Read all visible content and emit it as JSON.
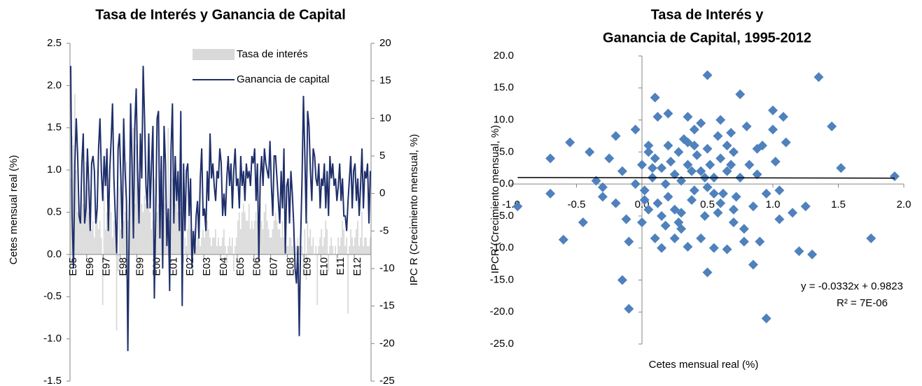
{
  "chart_data": [
    {
      "type": "combo",
      "title": "Tasa de Interés y Ganancia de Capital",
      "ylabel": "Cetes mensual real (%)",
      "y2label": "IPC R (Crecimiento mensual, %)",
      "ylim": [
        -1.5,
        2.5
      ],
      "yticks": [
        2.5,
        {
          "value": 2,
          "label": "2.0"
        },
        1.5,
        {
          "value": 1,
          "label": "1.0"
        },
        0.5,
        {
          "value": 0,
          "label": "0.0"
        },
        -0.5,
        {
          "value": -1,
          "label": "-1.0"
        },
        -1.5
      ],
      "y2lim": [
        -25,
        20
      ],
      "y2ticks": [
        20,
        15,
        10,
        5,
        0,
        -5,
        -10,
        -15,
        -20,
        -25
      ],
      "categories": [
        "E95",
        null,
        null,
        null,
        null,
        null,
        null,
        null,
        null,
        null,
        null,
        null,
        "E96",
        null,
        null,
        null,
        null,
        null,
        null,
        null,
        null,
        null,
        null,
        null,
        "E97",
        null,
        null,
        null,
        null,
        null,
        null,
        null,
        null,
        null,
        null,
        null,
        "E98",
        null,
        null,
        null,
        null,
        null,
        null,
        null,
        null,
        null,
        null,
        null,
        "E99",
        null,
        null,
        null,
        null,
        null,
        null,
        null,
        null,
        null,
        null,
        null,
        "E00",
        null,
        null,
        null,
        null,
        null,
        null,
        null,
        null,
        null,
        null,
        null,
        "E01",
        null,
        null,
        null,
        null,
        null,
        null,
        null,
        null,
        null,
        null,
        null,
        "E02",
        null,
        null,
        null,
        null,
        null,
        null,
        null,
        null,
        null,
        null,
        null,
        "E03",
        null,
        null,
        null,
        null,
        null,
        null,
        null,
        null,
        null,
        null,
        null,
        "E04",
        null,
        null,
        null,
        null,
        null,
        null,
        null,
        null,
        null,
        null,
        null,
        "E05",
        null,
        null,
        null,
        null,
        null,
        null,
        null,
        null,
        null,
        null,
        null,
        "E06",
        null,
        null,
        null,
        null,
        null,
        null,
        null,
        null,
        null,
        null,
        null,
        "E07",
        null,
        null,
        null,
        null,
        null,
        null,
        null,
        null,
        null,
        null,
        null,
        "E08",
        null,
        null,
        null,
        null,
        null,
        null,
        null,
        null,
        null,
        null,
        null,
        "E09",
        null,
        null,
        null,
        null,
        null,
        null,
        null,
        null,
        null,
        null,
        null,
        "E10",
        null,
        null,
        null,
        null,
        null,
        null,
        null,
        null,
        null,
        null,
        null,
        "E11",
        null,
        null,
        null,
        null,
        null,
        null,
        null,
        null,
        null,
        null,
        null,
        "E12",
        null,
        null,
        null,
        null,
        null,
        null,
        null,
        null,
        null,
        null,
        null
      ],
      "series": [
        {
          "name": "Tasa de interés",
          "type": "bar",
          "color": "#d9d9d9",
          "values": [
            0.9,
            1.4,
            1.3,
            1.9,
            1.0,
            0.5,
            0.6,
            0.4,
            0.7,
            0.6,
            0.5,
            1.1,
            0.8,
            0.5,
            0.6,
            0.3,
            0.4,
            0.2,
            0.5,
            0.6,
            0.3,
            0.4,
            0.2,
            -0.6,
            0.7,
            0.3,
            0.5,
            0.9,
            0.6,
            0.5,
            0.2,
            0.4,
            0.3,
            -0.9,
            -0.2,
            0.8,
            0.3,
            0.2,
            0.4,
            0.5,
            1.1,
            0.4,
            0.6,
            1.8,
            0.9,
            1.5,
            0.6,
            1.3,
            0.9,
            0.8,
            1.2,
            0.6,
            0.5,
            0.7,
            0.6,
            0.8,
            0.6,
            0.5,
            0.3,
            0.4,
            0.9,
            0.7,
            0.5,
            0.6,
            1.0,
            0.6,
            0.4,
            0.7,
            0.6,
            0.5,
            1.5,
            0.4,
            0.8,
            0.9,
            0.6,
            0.6,
            0.7,
            0.5,
            0.3,
            0.5,
            0.4,
            -0.1,
            0.2,
            0.1,
            0.3,
            0.5,
            0.3,
            0.3,
            0.2,
            0.3,
            0.1,
            0.2,
            0.3,
            0.1,
            0.2,
            0.3,
            0.2,
            0.3,
            0.4,
            0.3,
            0.2,
            0.1,
            0.2,
            0.2,
            0.3,
            0.1,
            0.2,
            0.1,
            0.1,
            0.2,
            0.3,
            0.1,
            -0.1,
            0.1,
            0.2,
            0.1,
            0.2,
            -0.2,
            0.1,
            0.2,
            0.4,
            0.5,
            0.3,
            0.5,
            0.6,
            0.5,
            0.4,
            0.4,
            0.6,
            0.3,
            0.4,
            0.3,
            0.4,
            0.5,
            0.4,
            0.5,
            0.6,
            0.4,
            0.3,
            0.5,
            0.6,
            0.4,
            0.3,
            0.2,
            0.2,
            0.3,
            0.4,
            0.5,
            0.4,
            0.3,
            0.3,
            0.2,
            0.4,
            0.2,
            0.3,
            0.1,
            0.1,
            0.2,
            0.2,
            0.1,
            0.3,
            -0.1,
            0.1,
            0.2,
            0.1,
            0.0,
            0.1,
            -0.2,
            0.3,
            -0.3,
            0.4,
            0.2,
            0.3,
            0.1,
            0.2,
            0.0,
            0.1,
            -0.6,
            0.1,
            0.2,
            0.3,
            0.1,
            0.2,
            0.4,
            0.3,
            -0.2,
            0.1,
            0.2,
            0.1,
            0.0,
            0.1,
            -0.1,
            0.2,
            0.1,
            0.2,
            0.4,
            0.3,
            0.1,
            0.2,
            -0.7,
            0.1,
            0.3,
            0.2,
            0.1,
            0.2,
            0.3,
            0.4,
            0.1,
            0.2,
            0.5,
            0.1,
            0.2,
            0.2,
            0.1,
            0.1,
            0.2
          ]
        },
        {
          "name": "Ganancia de capital",
          "type": "line",
          "axis": "y2",
          "color": "#1f2f6b",
          "values": [
            17,
            -3,
            -10,
            4,
            10,
            5,
            -3,
            -4,
            4,
            8,
            -4,
            -2,
            6,
            1,
            -5,
            4,
            5,
            3,
            -4,
            -2,
            6,
            10,
            3,
            -1,
            5,
            1,
            6,
            -5,
            3,
            7,
            12,
            2,
            -3,
            -8,
            6,
            8,
            2,
            -6,
            10,
            3,
            -1,
            -21,
            -4,
            12,
            4,
            -6,
            9,
            14,
            3,
            -4,
            8,
            2,
            17,
            10,
            1,
            -2,
            8,
            -2,
            4,
            9,
            -14,
            -3,
            10,
            11,
            -6,
            5,
            -10,
            9,
            4,
            -7,
            -2,
            -13,
            6,
            12,
            -4,
            5,
            -1,
            3,
            -5,
            11,
            -15,
            4,
            -5,
            3,
            4,
            -3,
            2,
            -10,
            -5,
            -8,
            -3,
            -1,
            -6,
            2,
            6,
            -3,
            -2,
            -5,
            3,
            -1,
            8,
            2,
            4,
            1,
            -1,
            3,
            2,
            6,
            4,
            -3,
            0,
            -3,
            2,
            5,
            1,
            4,
            -2,
            3,
            6,
            1,
            2,
            -2,
            5,
            1,
            3,
            -1,
            4,
            2,
            3,
            1,
            5,
            4,
            6,
            -1,
            4,
            -9,
            2,
            5,
            1,
            6,
            4,
            3,
            2,
            7,
            1,
            -3,
            5,
            5,
            2,
            -1,
            -4,
            3,
            -2,
            6,
            -8,
            1,
            2,
            -4,
            3,
            0,
            -4,
            -10,
            -12,
            -7,
            -19,
            -6,
            2,
            13,
            5,
            -4,
            11,
            9,
            3,
            -1,
            6,
            5,
            2,
            1,
            4,
            -2,
            2,
            1,
            4,
            -2,
            3,
            -3,
            5,
            2,
            4,
            1,
            2,
            -1,
            1,
            4,
            -1,
            2,
            -3,
            -3,
            -5,
            -1,
            2,
            5,
            -2,
            3,
            4,
            -1,
            2,
            -3,
            1,
            6,
            -2,
            3,
            2,
            4,
            -4,
            3
          ]
        }
      ]
    },
    {
      "type": "scatter",
      "title": [
        "Tasa de Interés y",
        "Ganancia de Capital, 1995-2012"
      ],
      "xlabel": "Cetes mensual real (%)",
      "ylabel": "IPCR (Crecimiento mensual, %)",
      "xlim": [
        -1,
        2
      ],
      "xticks": [
        {
          "value": -1,
          "label": "-1.0"
        },
        -0.5,
        {
          "value": 0,
          "label": "0.0"
        },
        0.5,
        {
          "value": 1,
          "label": "1.0"
        },
        1.5,
        {
          "value": 2,
          "label": "2.0"
        }
      ],
      "ylim": [
        -25,
        20
      ],
      "yticks": [
        {
          "value": 20,
          "label": "20.0"
        },
        {
          "value": 15,
          "label": "15.0"
        },
        {
          "value": 10,
          "label": "10.0"
        },
        {
          "value": 5,
          "label": "5.0"
        },
        {
          "value": 0,
          "label": "0.0"
        },
        {
          "value": -5,
          "label": "-5.0"
        },
        {
          "value": -10,
          "label": "-10.0"
        },
        {
          "value": -15,
          "label": "-15.0"
        },
        {
          "value": -20,
          "label": "-20.0"
        },
        {
          "value": -25,
          "label": "-25.0"
        }
      ],
      "color": "#4f81bd",
      "x": [
        -0.95,
        -0.7,
        -0.7,
        -0.6,
        -0.55,
        -0.45,
        -0.1,
        -0.15,
        0.5,
        1.35,
        0.95,
        1.93,
        1.45,
        1.52,
        1.75,
        1.3,
        0.1,
        0.35,
        0.75,
        1.0,
        1.2,
        0.5,
        0.85,
        -0.4,
        -0.35,
        -0.3,
        -0.2,
        -0.2,
        -0.15,
        -0.1,
        -0.05,
        0.0,
        0.0,
        0.02,
        0.05,
        0.05,
        0.08,
        0.1,
        0.1,
        0.12,
        0.15,
        0.15,
        0.18,
        0.2,
        0.2,
        0.22,
        0.25,
        0.25,
        0.28,
        0.3,
        0.3,
        0.32,
        0.35,
        0.35,
        0.38,
        0.4,
        0.4,
        0.42,
        0.45,
        0.45,
        0.48,
        0.5,
        0.5,
        0.52,
        0.55,
        0.55,
        0.58,
        0.6,
        0.6,
        0.62,
        0.65,
        0.65,
        0.68,
        0.7,
        0.7,
        0.72,
        0.75,
        0.78,
        0.8,
        0.82,
        0.85,
        0.88,
        0.9,
        0.92,
        0.95,
        1.0,
        1.02,
        1.05,
        1.08,
        1.1,
        1.15,
        1.25,
        1.05,
        0.3,
        0.45,
        -0.05,
        0.15,
        0.25,
        0.6,
        0.7,
        0.4,
        0.2,
        -0.25,
        -0.3,
        0.05,
        0.12,
        0.35,
        0.55,
        0.65,
        0.08,
        0.18,
        0.28,
        0.48,
        0.58,
        0.68,
        0.78,
        0.88,
        0.38,
        0.02,
        -0.12
      ],
      "values": [
        -3.5,
        4,
        -1.5,
        -8.7,
        6.5,
        -6,
        -19.5,
        -15,
        17,
        16.7,
        -21,
        1.2,
        9,
        2.5,
        -8.5,
        -11,
        13.5,
        10.5,
        14,
        11.5,
        -10.5,
        -13.8,
        -12.6,
        5,
        0.5,
        -2,
        7.5,
        -3,
        2,
        -9,
        8.5,
        -6,
        3,
        -1,
        6,
        -4,
        1,
        -8.5,
        4,
        10.5,
        -10,
        2.5,
        -6.5,
        6,
        -2,
        3.5,
        -4,
        1.5,
        5,
        -7,
        0.5,
        7,
        -9.8,
        3,
        -2.5,
        8.5,
        -1,
        4.5,
        -8.5,
        2,
        -5,
        5.5,
        -0.5,
        3,
        -10,
        1,
        7.5,
        -3,
        4,
        -1.5,
        -10.2,
        2,
        8,
        -6,
        5,
        -2,
        1,
        -7,
        9,
        3,
        -3.5,
        1.5,
        -9,
        6,
        -1.5,
        8.5,
        3.5,
        -5.5,
        10.5,
        6.5,
        -4.5,
        -3.5,
        -1,
        -4.5,
        9.5,
        0,
        -5,
        -8.5,
        10,
        -4,
        6,
        11,
        4,
        -0.5,
        5,
        -3,
        6.5,
        -1.5,
        6,
        2.5,
        0,
        -6,
        1,
        -4.5,
        3,
        -9,
        5.5,
        2,
        -2.5,
        -5.5
      ],
      "trendline": {
        "color": "#000000",
        "x": [
          -0.95,
          1.93
        ],
        "y": [
          1.014,
          0.918
        ]
      },
      "annotations": [
        "y = -0.0332x + 0.9823",
        "R² = 7E-06"
      ]
    }
  ]
}
